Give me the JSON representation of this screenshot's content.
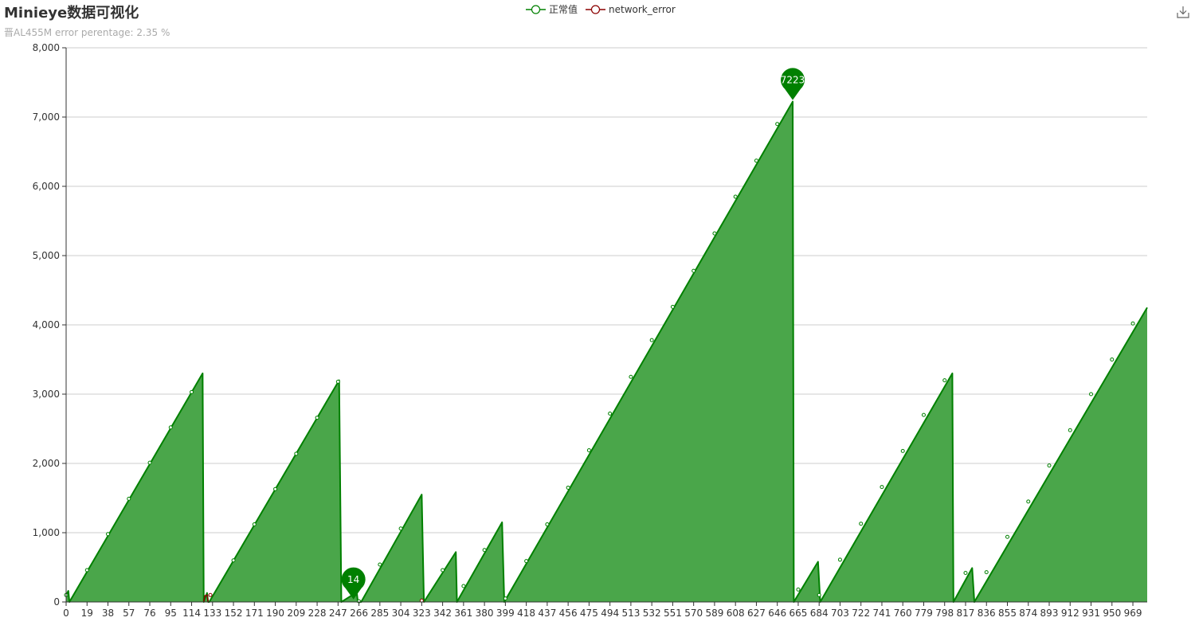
{
  "title": "Minieye数据可视化",
  "subtitle": "晋AL455M error perentage: 2.35 %",
  "legend": {
    "items": [
      {
        "label": "正常值",
        "color": "#008000"
      },
      {
        "label": "network_error",
        "color": "#8b0000"
      }
    ]
  },
  "toolbox": {
    "icon": "download-icon"
  },
  "colors": {
    "normal_line": "#008000",
    "normal_area": "#4aa64a",
    "error": "#8b0000",
    "grid": "#cccccc",
    "axis": "#333333"
  },
  "chart_data": {
    "type": "area",
    "xlim": [
      0,
      982
    ],
    "ylim": [
      0,
      8000
    ],
    "x_ticks": [
      0,
      19,
      38,
      57,
      76,
      95,
      114,
      133,
      152,
      171,
      190,
      209,
      228,
      247,
      266,
      285,
      304,
      323,
      342,
      361,
      380,
      399,
      418,
      437,
      456,
      475,
      494,
      513,
      532,
      551,
      570,
      589,
      608,
      627,
      646,
      665,
      684,
      703,
      722,
      741,
      760,
      779,
      798,
      817,
      836,
      855,
      874,
      893,
      912,
      931,
      950,
      969
    ],
    "y_ticks": [
      0,
      1000,
      2000,
      3000,
      4000,
      5000,
      6000,
      7000,
      8000
    ],
    "y_tick_labels": [
      "0",
      "1,000",
      "2,000",
      "3,000",
      "4,000",
      "5,000",
      "6,000",
      "7,000",
      "8,000"
    ],
    "series": [
      {
        "name": "正常值",
        "points": [
          [
            0,
            100
          ],
          [
            2,
            160
          ],
          [
            3,
            0
          ],
          [
            124,
            3300
          ],
          [
            125,
            0
          ],
          [
            128,
            130
          ],
          [
            129,
            0
          ],
          [
            130,
            0
          ],
          [
            248,
            3200
          ],
          [
            250,
            0
          ],
          [
            264,
            140
          ],
          [
            265,
            0
          ],
          [
            268,
            0
          ],
          [
            323,
            1550
          ],
          [
            325,
            0
          ],
          [
            354,
            720
          ],
          [
            355,
            0
          ],
          [
            396,
            1150
          ],
          [
            398,
            0
          ],
          [
            660,
            7223
          ],
          [
            661,
            0
          ],
          [
            683,
            580
          ],
          [
            685,
            0
          ],
          [
            805,
            3300
          ],
          [
            806,
            0
          ],
          [
            823,
            490
          ],
          [
            825,
            0
          ],
          [
            982,
            4250
          ]
        ],
        "markers": [
          {
            "x": 0,
            "y": 100
          },
          {
            "x": 19,
            "y": 460
          },
          {
            "x": 38,
            "y": 980
          },
          {
            "x": 57,
            "y": 1490
          },
          {
            "x": 76,
            "y": 2010
          },
          {
            "x": 95,
            "y": 2520
          },
          {
            "x": 114,
            "y": 3030
          },
          {
            "x": 152,
            "y": 600
          },
          {
            "x": 171,
            "y": 1120
          },
          {
            "x": 190,
            "y": 1630
          },
          {
            "x": 209,
            "y": 2140
          },
          {
            "x": 228,
            "y": 2660
          },
          {
            "x": 247,
            "y": 3180
          },
          {
            "x": 266,
            "y": 10
          },
          {
            "x": 285,
            "y": 540
          },
          {
            "x": 304,
            "y": 1060
          },
          {
            "x": 342,
            "y": 460
          },
          {
            "x": 361,
            "y": 230
          },
          {
            "x": 380,
            "y": 750
          },
          {
            "x": 399,
            "y": 50
          },
          {
            "x": 418,
            "y": 590
          },
          {
            "x": 437,
            "y": 1120
          },
          {
            "x": 456,
            "y": 1650
          },
          {
            "x": 475,
            "y": 2190
          },
          {
            "x": 494,
            "y": 2720
          },
          {
            "x": 513,
            "y": 3250
          },
          {
            "x": 532,
            "y": 3780
          },
          {
            "x": 551,
            "y": 4260
          },
          {
            "x": 570,
            "y": 4780
          },
          {
            "x": 589,
            "y": 5320
          },
          {
            "x": 608,
            "y": 5850
          },
          {
            "x": 627,
            "y": 6370
          },
          {
            "x": 646,
            "y": 6900
          },
          {
            "x": 665,
            "y": 180
          },
          {
            "x": 684,
            "y": 100
          },
          {
            "x": 703,
            "y": 610
          },
          {
            "x": 722,
            "y": 1130
          },
          {
            "x": 741,
            "y": 1660
          },
          {
            "x": 760,
            "y": 2180
          },
          {
            "x": 779,
            "y": 2700
          },
          {
            "x": 798,
            "y": 3200
          },
          {
            "x": 817,
            "y": 420
          },
          {
            "x": 836,
            "y": 430
          },
          {
            "x": 855,
            "y": 940
          },
          {
            "x": 874,
            "y": 1450
          },
          {
            "x": 893,
            "y": 1970
          },
          {
            "x": 912,
            "y": 2480
          },
          {
            "x": 931,
            "y": 3000
          },
          {
            "x": 950,
            "y": 3500
          },
          {
            "x": 969,
            "y": 4020
          }
        ]
      },
      {
        "name": "network_error",
        "points": [
          [
            125,
            0
          ],
          [
            126,
            90
          ],
          [
            128,
            100
          ],
          [
            129,
            0
          ]
        ],
        "markers": [
          {
            "x": 131,
            "y": 100
          },
          {
            "x": 323,
            "y": 20
          }
        ]
      }
    ],
    "mark_points": [
      {
        "label": "7223",
        "x": 660,
        "y": 7223,
        "kind": "max"
      },
      {
        "label": "14",
        "x": 261,
        "y": 14,
        "kind": "min"
      }
    ]
  }
}
